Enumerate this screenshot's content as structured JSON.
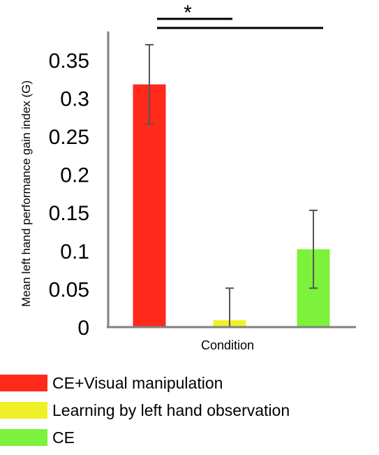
{
  "chart_data": {
    "type": "bar",
    "categories": [
      "CE+Visual manipulation",
      "Learning by left hand observation",
      "CE"
    ],
    "values": [
      0.318,
      0.009,
      0.102
    ],
    "error": [
      0.052,
      0.042,
      0.051
    ],
    "colors": [
      "#ff2a1a",
      "#f0f028",
      "#7cf23a"
    ],
    "xlabel": "Condition",
    "ylabel": "Mean left hand performance gain index (G)",
    "ylim": [
      0,
      0.38
    ],
    "yticks": [
      "0",
      "0.05",
      "0.1",
      "0.15",
      "0.2",
      "0.25",
      "0.3",
      "0.35"
    ],
    "significance": "*",
    "grid": false,
    "legend_position": "bottom"
  },
  "legend": [
    {
      "label": "CE+Visual manipulation",
      "color": "#ff2a1a"
    },
    {
      "label": "Learning by left hand observation",
      "color": "#f0f028"
    },
    {
      "label": "CE",
      "color": "#7cf23a"
    }
  ]
}
